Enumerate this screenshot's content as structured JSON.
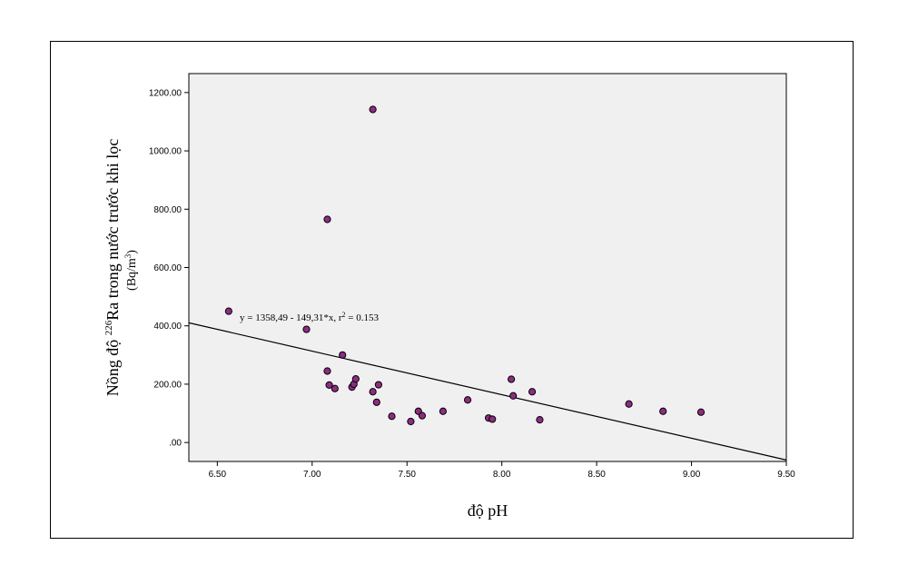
{
  "chart_data": {
    "type": "scatter",
    "xlabel": "độ pH",
    "ylabel_prefix": "Nồng độ ",
    "ylabel_superscript": "226",
    "ylabel_suffix": "Ra trong nước trước khi lọc",
    "yunit_prefix": "(Bq/m",
    "yunit_superscript": "3",
    "yunit_suffix": ")",
    "xlim": [
      6.35,
      9.5
    ],
    "ylim": [
      -65,
      1265
    ],
    "x_ticks": [
      6.5,
      7.0,
      7.5,
      8.0,
      8.5,
      9.0,
      9.5
    ],
    "x_tick_labels": [
      "6.50",
      "7.00",
      "7.50",
      "8.00",
      "8.50",
      "9.00",
      "9.50"
    ],
    "y_ticks": [
      0,
      200,
      400,
      600,
      800,
      1000,
      1200
    ],
    "y_tick_labels": [
      ".00",
      "200.00",
      "400.00",
      "600.00",
      "800.00",
      "1000.00",
      "1200.00"
    ],
    "grid": false,
    "points": [
      {
        "x": 6.56,
        "y": 450
      },
      {
        "x": 6.97,
        "y": 388
      },
      {
        "x": 7.08,
        "y": 765
      },
      {
        "x": 7.08,
        "y": 245
      },
      {
        "x": 7.09,
        "y": 197
      },
      {
        "x": 7.12,
        "y": 185
      },
      {
        "x": 7.16,
        "y": 300
      },
      {
        "x": 7.21,
        "y": 190
      },
      {
        "x": 7.22,
        "y": 200
      },
      {
        "x": 7.23,
        "y": 218
      },
      {
        "x": 7.32,
        "y": 1142
      },
      {
        "x": 7.32,
        "y": 174
      },
      {
        "x": 7.34,
        "y": 138
      },
      {
        "x": 7.35,
        "y": 198
      },
      {
        "x": 7.42,
        "y": 90
      },
      {
        "x": 7.52,
        "y": 72
      },
      {
        "x": 7.56,
        "y": 107
      },
      {
        "x": 7.58,
        "y": 92
      },
      {
        "x": 7.69,
        "y": 107
      },
      {
        "x": 7.82,
        "y": 146
      },
      {
        "x": 7.93,
        "y": 84
      },
      {
        "x": 7.95,
        "y": 80
      },
      {
        "x": 8.05,
        "y": 217
      },
      {
        "x": 8.06,
        "y": 160
      },
      {
        "x": 8.16,
        "y": 174
      },
      {
        "x": 8.2,
        "y": 78
      },
      {
        "x": 8.67,
        "y": 132
      },
      {
        "x": 8.85,
        "y": 107
      },
      {
        "x": 9.05,
        "y": 104
      }
    ],
    "fit_line": {
      "intercept": 1358.49,
      "slope": -149.31
    },
    "equation_label": "y = 1358,49 - 149,31*x, r",
    "equation_r2_sup": "2",
    "equation_r2_value": " = 0.153",
    "colors": {
      "plot_bg": "#f0f0f0",
      "point_fill": "#8e2c82",
      "point_stroke": "#000000",
      "line": "#000000"
    }
  }
}
